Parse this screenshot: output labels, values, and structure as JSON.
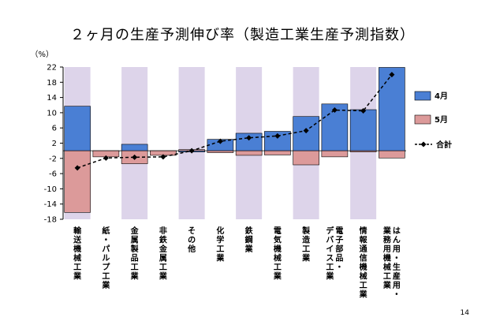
{
  "title": "２ヶ月の生産予測伸び率（製造工業生産予測指数）",
  "page_number": "14",
  "colors": {
    "band": "#ddd4ea",
    "april": "#4a7fd4",
    "may": "#dc9a9a",
    "total": "#000000",
    "frame": "#000000"
  },
  "chart_data": {
    "type": "bar",
    "yunit": "（%）",
    "ylim": [
      -18,
      22
    ],
    "yticks": [
      22,
      18,
      14,
      10,
      6,
      2,
      -2,
      -6,
      -10,
      -14,
      -18
    ],
    "categories": [
      [
        "輸送機械工業"
      ],
      [
        "紙・パルプ工業"
      ],
      [
        "金属製品工業"
      ],
      [
        "非鉄金属工業"
      ],
      [
        "その他"
      ],
      [
        "化学工業"
      ],
      [
        "鉄鋼業"
      ],
      [
        "電気機械工業"
      ],
      [
        "製造工業"
      ],
      [
        "電子部品・",
        "デバイス工業"
      ],
      [
        "情報通信機械工業"
      ],
      [
        "はん用・生産用・",
        "業務用機械工業"
      ]
    ],
    "series": [
      {
        "name": "4月",
        "type": "bar",
        "values": [
          11.7,
          -0.3,
          1.7,
          -0.4,
          -0.3,
          3.0,
          4.6,
          5.1,
          9.0,
          12.3,
          10.8,
          21.9
        ]
      },
      {
        "name": "5月",
        "type": "bar",
        "values": [
          -16.2,
          -1.6,
          -3.4,
          -1.2,
          0.3,
          -0.5,
          -1.2,
          -1.1,
          -3.7,
          -1.6,
          -0.3,
          -1.9
        ]
      },
      {
        "name": "合計",
        "type": "line",
        "values": [
          -4.5,
          -1.9,
          -1.7,
          -1.6,
          0.0,
          2.5,
          3.4,
          3.9,
          5.3,
          10.7,
          10.5,
          20.0
        ]
      }
    ],
    "legend_position": "right"
  }
}
